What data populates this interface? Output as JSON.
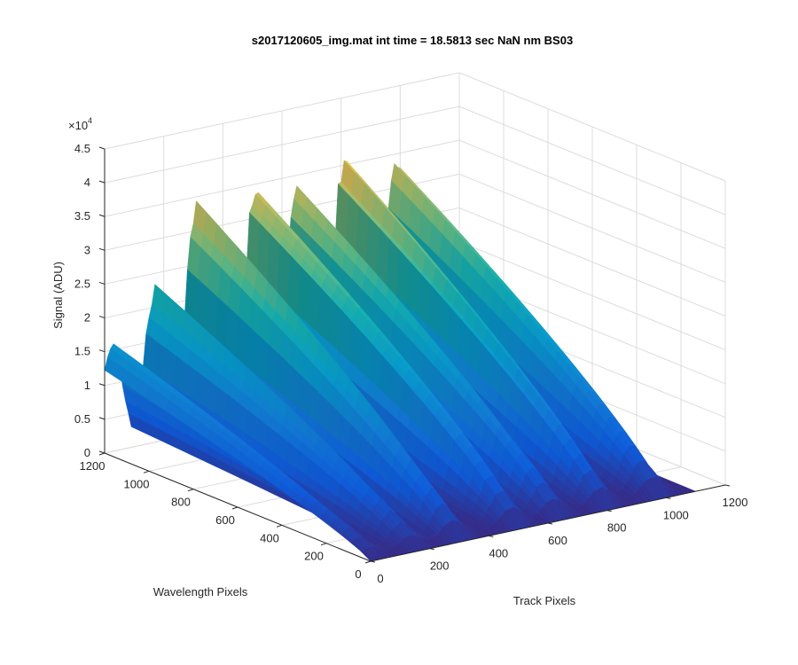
{
  "chart_data": {
    "type": "surface",
    "title": "s2017120605_img.mat int time = 18.5813 sec  NaN nm BS03",
    "xlabel": "Track Pixels",
    "ylabel": "Wavelength Pixels",
    "zlabel": "Signal (ADU)",
    "z_exponent_label": "×10",
    "z_exponent_power": "4",
    "xlim": [
      0,
      1200
    ],
    "ylim": [
      0,
      1200
    ],
    "zlim": [
      0,
      45000
    ],
    "x_ticks": [
      "0",
      "200",
      "400",
      "600",
      "800",
      "1000",
      "1200"
    ],
    "y_ticks": [
      "0",
      "200",
      "400",
      "600",
      "800",
      "1000",
      "1200"
    ],
    "z_ticks": [
      "0",
      "0.5",
      "1",
      "1.5",
      "2",
      "2.5",
      "3",
      "3.5",
      "4",
      "4.5"
    ],
    "grid": true,
    "colormap": "parula",
    "peaks": [
      {
        "track": 25,
        "peak_signal": 15500
      },
      {
        "track": 170,
        "peak_signal": 22000
      },
      {
        "track": 310,
        "peak_signal": 33500
      },
      {
        "track": 510,
        "peak_signal": 34000
      },
      {
        "track": 650,
        "peak_signal": 33000
      },
      {
        "track": 810,
        "peak_signal": 35500
      },
      {
        "track": 985,
        "peak_signal": 34000
      }
    ],
    "signal_at_wavelength_1200": 15500,
    "signal_at_wavelength_0": 0
  }
}
